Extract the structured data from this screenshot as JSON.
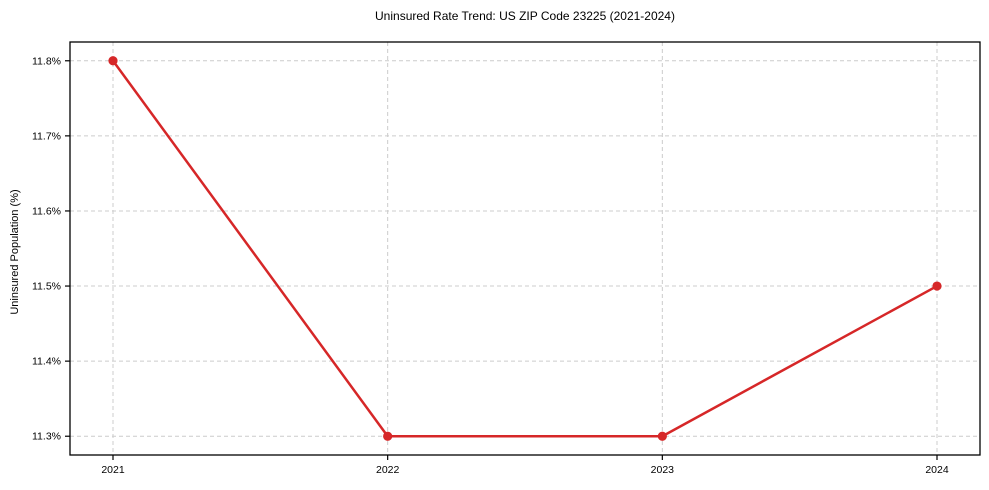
{
  "chart_data": {
    "type": "line",
    "title": "Uninsured Rate Trend: US ZIP Code 23225 (2021-2024)",
    "xlabel": "",
    "ylabel": "Uninsured Population (%)",
    "x": [
      2021,
      2022,
      2023,
      2024
    ],
    "x_tick_labels": [
      "2021",
      "2022",
      "2023",
      "2024"
    ],
    "series": [
      {
        "name": "Uninsured Rate",
        "values": [
          11.8,
          11.3,
          11.3,
          11.5
        ],
        "color": "#d62728",
        "marker": "circle"
      }
    ],
    "y_ticks": [
      11.3,
      11.4,
      11.5,
      11.6,
      11.7,
      11.8
    ],
    "y_tick_labels": [
      "11.3%",
      "11.4%",
      "11.5%",
      "11.6%",
      "11.7%",
      "11.8%"
    ],
    "ylim": [
      11.275,
      11.825
    ],
    "grid": "dashed",
    "grid_color": "#cccccc",
    "axis_color": "#000000",
    "tick_label_color": "#000000",
    "background": "#ffffff",
    "legend": "none"
  }
}
